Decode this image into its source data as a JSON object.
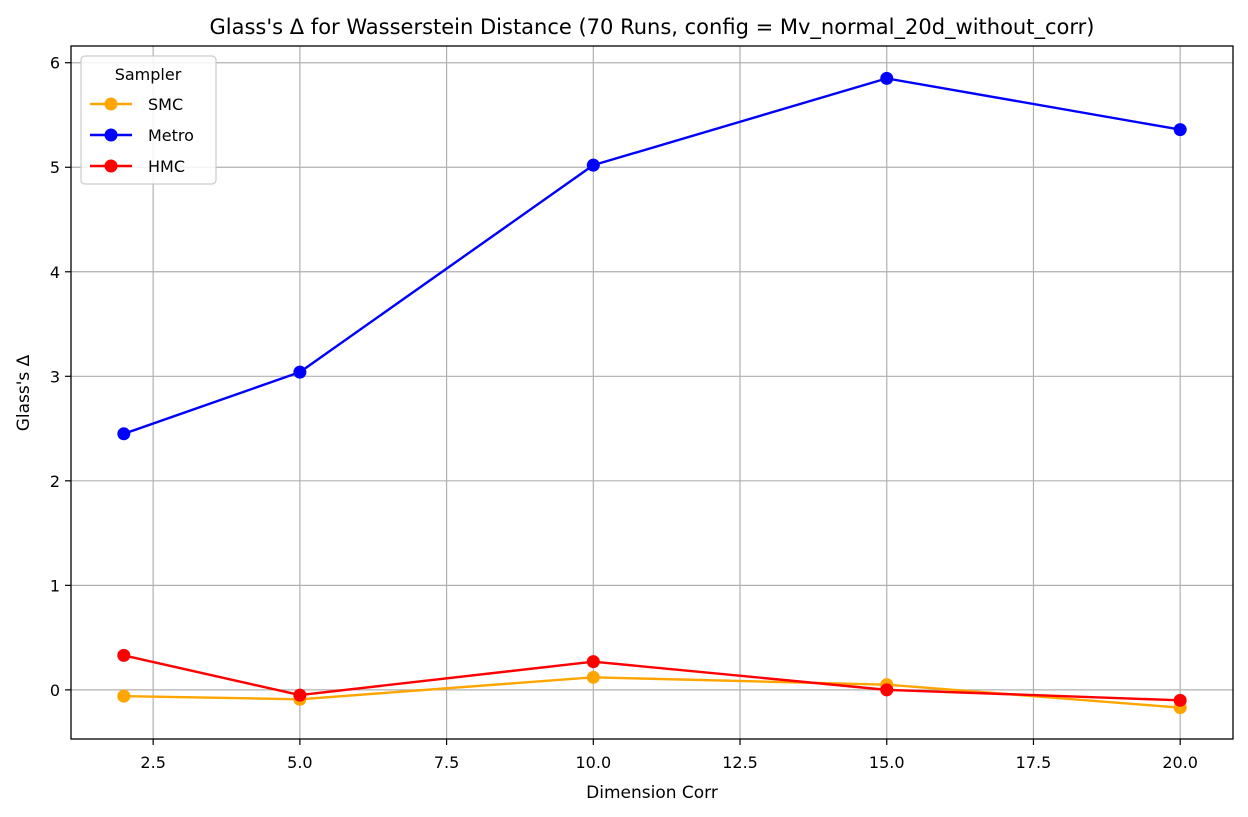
{
  "chart_data": {
    "type": "line",
    "title": "Glass's Δ for Wasserstein Distance (70 Runs, config = Mv_normal_20d_without_corr)",
    "xlabel": "Dimension Corr",
    "ylabel": "Glass's Δ",
    "x": [
      2,
      5,
      10,
      15,
      20
    ],
    "xlim": [
      1.1,
      20.9
    ],
    "ylim": [
      -0.47,
      6.16
    ],
    "xticks": [
      2.5,
      5.0,
      7.5,
      10.0,
      12.5,
      15.0,
      17.5,
      20.0
    ],
    "xtick_labels": [
      "2.5",
      "5.0",
      "7.5",
      "10.0",
      "12.5",
      "15.0",
      "17.5",
      "20.0"
    ],
    "yticks": [
      0,
      1,
      2,
      3,
      4,
      5,
      6
    ],
    "ytick_labels": [
      "0",
      "1",
      "2",
      "3",
      "4",
      "5",
      "6"
    ],
    "grid": true,
    "legend": {
      "title": "Sampler",
      "placement": "top-left"
    },
    "series": [
      {
        "name": "SMC",
        "color": "#FFA500",
        "values": [
          -0.06,
          -0.09,
          0.12,
          0.05,
          -0.17
        ]
      },
      {
        "name": "Metro",
        "color": "#0000FF",
        "values": [
          2.45,
          3.04,
          5.02,
          5.85,
          5.36
        ]
      },
      {
        "name": "HMC",
        "color": "#FF0000",
        "values": [
          0.33,
          -0.05,
          0.27,
          0.0,
          -0.1
        ]
      }
    ]
  }
}
